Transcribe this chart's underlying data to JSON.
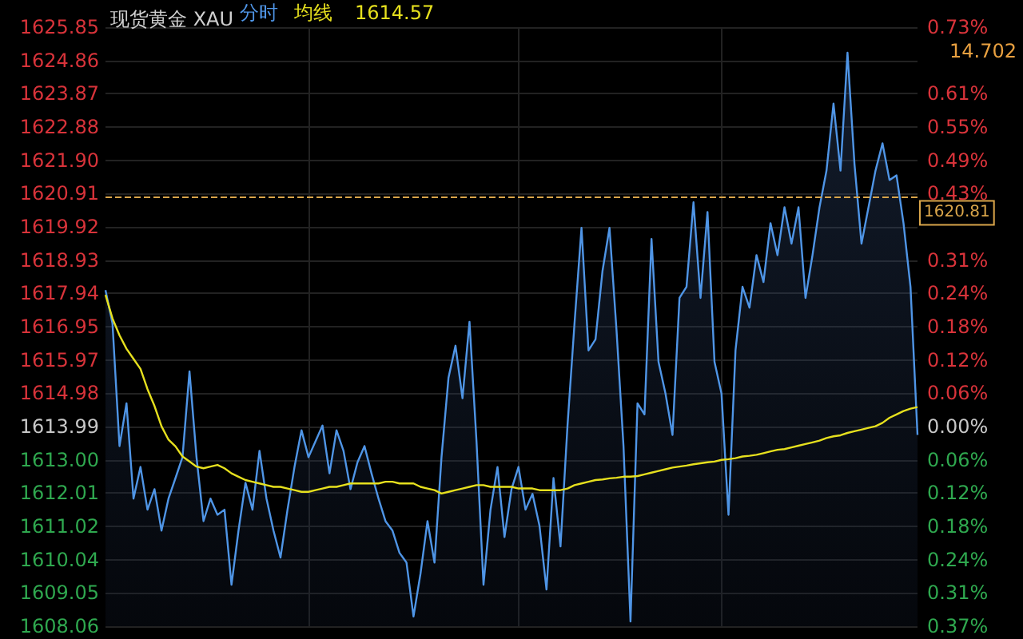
{
  "chart_data": {
    "type": "line",
    "title": "现货黄金 XAU",
    "grid": true,
    "categories": [
      null,
      null,
      null,
      null,
      null,
      null,
      null,
      null,
      null,
      null,
      null,
      null,
      null,
      null,
      null,
      null,
      null,
      null,
      null,
      null,
      null,
      null,
      null,
      null,
      null,
      null,
      null,
      null,
      null,
      null,
      null,
      null,
      null,
      null,
      null,
      null,
      null,
      null,
      null,
      null,
      null,
      null,
      null,
      null,
      null,
      null,
      null,
      null,
      null,
      null,
      null,
      null,
      null,
      null,
      null,
      null,
      null,
      null,
      null,
      null,
      null,
      null,
      null,
      null,
      null,
      null,
      null,
      null,
      null,
      null,
      null,
      null,
      null,
      null,
      null,
      null,
      null,
      null,
      null,
      null,
      null,
      null,
      null,
      null,
      null,
      null,
      null,
      null,
      null,
      null,
      null,
      null,
      null,
      null,
      null,
      null,
      null,
      null,
      null,
      null,
      null,
      null,
      null,
      null,
      null,
      null,
      null,
      null,
      null,
      null,
      null,
      null,
      null,
      null,
      null,
      null,
      null
    ],
    "series": [
      {
        "name": "分时",
        "type": "area",
        "color": "#4f95e6",
        "values": [
          1618.04,
          1617.05,
          1613.41,
          1614.68,
          1611.85,
          1612.79,
          1611.52,
          1612.13,
          1610.9,
          1611.85,
          1612.46,
          1613.08,
          1615.63,
          1613.08,
          1611.18,
          1611.85,
          1611.37,
          1611.52,
          1609.29,
          1610.9,
          1612.32,
          1611.52,
          1613.27,
          1611.85,
          1610.9,
          1610.1,
          1611.52,
          1612.79,
          1613.88,
          1613.08,
          1613.55,
          1614.02,
          1612.6,
          1613.88,
          1613.27,
          1612.13,
          1612.93,
          1613.41,
          1612.6,
          1611.85,
          1611.18,
          1610.9,
          1610.24,
          1609.95,
          1608.35,
          1609.62,
          1611.18,
          1609.95,
          1613.08,
          1615.44,
          1616.39,
          1614.83,
          1617.1,
          1613.55,
          1609.29,
          1611.52,
          1612.79,
          1610.71,
          1612.13,
          1612.79,
          1611.52,
          1611.99,
          1611.04,
          1609.15,
          1612.46,
          1610.43,
          1614.02,
          1617.05,
          1619.89,
          1616.25,
          1616.58,
          1618.61,
          1619.89,
          1616.86,
          1613.41,
          1608.2,
          1614.68,
          1614.35,
          1619.56,
          1615.91,
          1614.97,
          1613.74,
          1617.81,
          1618.14,
          1620.65,
          1617.81,
          1620.36,
          1615.91,
          1614.97,
          1611.37,
          1616.25,
          1618.14,
          1617.52,
          1619.08,
          1618.28,
          1620.03,
          1619.08,
          1620.5,
          1619.42,
          1620.5,
          1617.81,
          1619.08,
          1620.5,
          1621.59,
          1623.58,
          1621.59,
          1625.09,
          1621.78,
          1619.42,
          1620.5,
          1621.59,
          1622.4,
          1621.31,
          1621.45,
          1620.03,
          1618.14,
          1613.74
        ]
      },
      {
        "name": "均线",
        "type": "line",
        "color": "#e6e01e",
        "values": [
          1617.9,
          1617.2,
          1616.7,
          1616.3,
          1616.0,
          1615.7,
          1615.1,
          1614.6,
          1614.0,
          1613.6,
          1613.4,
          1613.1,
          1612.95,
          1612.8,
          1612.75,
          1612.8,
          1612.85,
          1612.75,
          1612.6,
          1612.5,
          1612.4,
          1612.35,
          1612.3,
          1612.25,
          1612.2,
          1612.2,
          1612.15,
          1612.1,
          1612.05,
          1612.05,
          1612.1,
          1612.15,
          1612.2,
          1612.2,
          1612.25,
          1612.3,
          1612.3,
          1612.3,
          1612.3,
          1612.3,
          1612.35,
          1612.35,
          1612.3,
          1612.3,
          1612.3,
          1612.2,
          1612.15,
          1612.1,
          1612.0,
          1612.05,
          1612.1,
          1612.15,
          1612.2,
          1612.25,
          1612.25,
          1612.2,
          1612.2,
          1612.2,
          1612.2,
          1612.15,
          1612.15,
          1612.15,
          1612.1,
          1612.1,
          1612.1,
          1612.1,
          1612.15,
          1612.25,
          1612.3,
          1612.35,
          1612.4,
          1612.42,
          1612.45,
          1612.47,
          1612.5,
          1612.5,
          1612.52,
          1612.57,
          1612.62,
          1612.67,
          1612.72,
          1612.77,
          1612.8,
          1612.83,
          1612.87,
          1612.9,
          1612.93,
          1612.95,
          1613.0,
          1613.02,
          1613.05,
          1613.1,
          1613.12,
          1613.15,
          1613.2,
          1613.25,
          1613.3,
          1613.32,
          1613.37,
          1613.42,
          1613.47,
          1613.52,
          1613.57,
          1613.65,
          1613.7,
          1613.73,
          1613.8,
          1613.85,
          1613.9,
          1613.95,
          1614.0,
          1614.1,
          1614.25,
          1614.35,
          1614.45,
          1614.52,
          1614.57
        ]
      }
    ],
    "ylim": [
      1608.06,
      1625.85
    ],
    "yticks": [
      1625.85,
      1624.86,
      1623.87,
      1622.88,
      {
        "value": 1621.9,
        "label": "1621.90"
      },
      1620.91,
      1619.92,
      1618.93,
      1617.94,
      1616.95,
      1615.97,
      1614.98,
      1613.99,
      {
        "value": 1613,
        "label": "1613.00"
      },
      1612.01,
      1611.02,
      1610.04,
      1609.05,
      1608.06
    ],
    "y2lim": [
      -0.3672,
      0.7344
    ],
    "y2ticks": [
      {
        "value": 0.7344,
        "label": "0.73%"
      },
      {
        "value": 0.612,
        "label": "0.61%"
      },
      {
        "value": 0.5508,
        "label": "0.55%"
      },
      {
        "value": 0.4896,
        "label": "0.49%"
      },
      {
        "value": 0.4284,
        "label": "0.43%"
      },
      {
        "value": 0.306,
        "label": "0.31%"
      },
      {
        "value": 0.2448,
        "label": "0.24%"
      },
      {
        "value": 0.1836,
        "label": "0.18%"
      },
      {
        "value": 0.1224,
        "label": "0.12%"
      },
      {
        "value": 0.0612,
        "label": "0.06%"
      },
      {
        "value": 0,
        "label": "0.00%"
      },
      {
        "value": -0.0612,
        "label": "0.06%"
      },
      {
        "value": -0.1224,
        "label": "0.12%"
      },
      {
        "value": -0.1836,
        "label": "0.18%"
      },
      {
        "value": -0.2448,
        "label": "0.24%"
      },
      {
        "value": -0.306,
        "label": "0.31%"
      },
      {
        "value": -0.3672,
        "label": "0.37%"
      }
    ],
    "ref_lines": [
      {
        "axis": "y",
        "value": 1620.81,
        "label": "1620.81",
        "color": "#d9a54a",
        "line_style": "dashed"
      }
    ],
    "annotations": [
      "1614.57",
      "14.702"
    ]
  }
}
